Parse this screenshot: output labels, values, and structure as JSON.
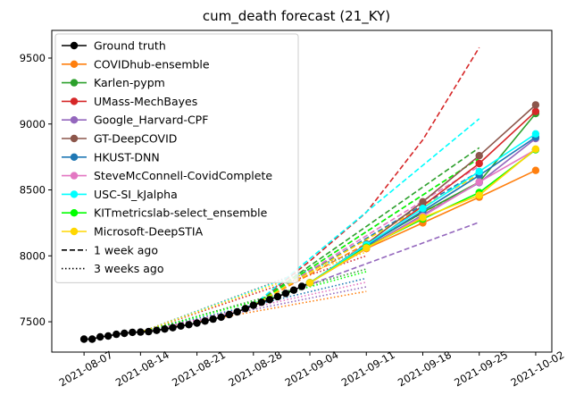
{
  "chart_data": {
    "type": "line",
    "title": "cum_death forecast (21_KY)",
    "xlabel": "",
    "ylabel": "",
    "x_type": "date",
    "xlim": [
      "2021-08-03",
      "2021-10-04"
    ],
    "ylim": [
      7270,
      9710
    ],
    "x_ticks": [
      "2021-08-07",
      "2021-08-14",
      "2021-08-21",
      "2021-08-28",
      "2021-09-04",
      "2021-09-11",
      "2021-09-18",
      "2021-09-25",
      "2021-10-02"
    ],
    "y_ticks": [
      7500,
      8000,
      8500,
      9000,
      9500
    ],
    "grid": false,
    "legend_position": "top-left",
    "legend": [
      {
        "label": "Ground truth",
        "color": "#000000",
        "kind": "marker"
      },
      {
        "label": "COVIDhub-ensemble",
        "color": "#ff7f0e",
        "kind": "marker"
      },
      {
        "label": "Karlen-pypm",
        "color": "#2ca02c",
        "kind": "marker"
      },
      {
        "label": "UMass-MechBayes",
        "color": "#d62728",
        "kind": "marker"
      },
      {
        "label": "Google_Harvard-CPF",
        "color": "#9467bd",
        "kind": "marker"
      },
      {
        "label": "GT-DeepCOVID",
        "color": "#8c564b",
        "kind": "marker"
      },
      {
        "label": "HKUST-DNN",
        "color": "#1f77b4",
        "kind": "marker"
      },
      {
        "label": "SteveMcConnell-CovidComplete",
        "color": "#e377c2",
        "kind": "marker"
      },
      {
        "label": "USC-SI_kJalpha",
        "color": "#00ffff",
        "kind": "marker"
      },
      {
        "label": "KITmetricslab-select_ensemble",
        "color": "#00ff00",
        "kind": "marker"
      },
      {
        "label": "Microsoft-DeepSTIA",
        "color": "#ffd700",
        "kind": "marker"
      },
      {
        "label": "1 week ago",
        "color": "#000000",
        "kind": "dashed"
      },
      {
        "label": "3 weeks ago",
        "color": "#000000",
        "kind": "dotted"
      }
    ],
    "ground_truth": {
      "name": "Ground truth",
      "color": "#000000",
      "points": [
        [
          "2021-08-07",
          7368
        ],
        [
          "2021-08-08",
          7368
        ],
        [
          "2021-08-09",
          7385
        ],
        [
          "2021-08-10",
          7392
        ],
        [
          "2021-08-11",
          7405
        ],
        [
          "2021-08-12",
          7412
        ],
        [
          "2021-08-13",
          7420
        ],
        [
          "2021-08-14",
          7422
        ],
        [
          "2021-08-15",
          7425
        ],
        [
          "2021-08-16",
          7435
        ],
        [
          "2021-08-17",
          7445
        ],
        [
          "2021-08-18",
          7455
        ],
        [
          "2021-08-19",
          7468
        ],
        [
          "2021-08-20",
          7478
        ],
        [
          "2021-08-21",
          7490
        ],
        [
          "2021-08-22",
          7505
        ],
        [
          "2021-08-23",
          7520
        ],
        [
          "2021-08-24",
          7535
        ],
        [
          "2021-08-25",
          7555
        ],
        [
          "2021-08-26",
          7575
        ],
        [
          "2021-08-27",
          7600
        ],
        [
          "2021-08-28",
          7625
        ],
        [
          "2021-08-29",
          7648
        ],
        [
          "2021-08-30",
          7668
        ],
        [
          "2021-08-31",
          7690
        ],
        [
          "2021-09-01",
          7715
        ],
        [
          "2021-09-02",
          7740
        ],
        [
          "2021-09-03",
          7768
        ],
        [
          "2021-09-04",
          7795
        ]
      ]
    },
    "forecast_dates": [
      "2021-09-04",
      "2021-09-11",
      "2021-09-18",
      "2021-09-25",
      "2021-10-02"
    ],
    "forecasts": [
      {
        "name": "COVIDhub-ensemble",
        "color": "#ff7f0e",
        "values": [
          7795,
          8055,
          8250,
          8445,
          8648
        ]
      },
      {
        "name": "Karlen-pypm",
        "color": "#2ca02c",
        "values": [
          7795,
          8080,
          8330,
          8560,
          9080
        ]
      },
      {
        "name": "UMass-MechBayes",
        "color": "#d62728",
        "values": [
          7795,
          8070,
          8380,
          8700,
          9095
        ]
      },
      {
        "name": "Google_Harvard-CPF",
        "color": "#9467bd",
        "values": [
          7795,
          8065,
          8310,
          8555,
          8890
        ]
      },
      {
        "name": "GT-DeepCOVID",
        "color": "#8c564b",
        "values": [
          7795,
          8090,
          8410,
          8760,
          9145
        ]
      },
      {
        "name": "HKUST-DNN",
        "color": "#1f77b4",
        "values": [
          7795,
          8075,
          8340,
          8610,
          8900
        ]
      },
      {
        "name": "SteveMcConnell-CovidComplete",
        "color": "#e377c2",
        "values": [
          7795,
          8060,
          8300,
          8560,
          8805
        ]
      },
      {
        "name": "USC-SI_kJalpha",
        "color": "#00ffff",
        "values": [
          7795,
          8085,
          8360,
          8640,
          8925
        ]
      },
      {
        "name": "KITmetricslab-select_ensemble",
        "color": "#00ff00",
        "values": [
          7795,
          8065,
          8280,
          8480,
          8805
        ]
      },
      {
        "name": "Microsoft-DeepSTIA",
        "color": "#ffd700",
        "values": [
          7795,
          8060,
          8290,
          8460,
          8810
        ]
      }
    ],
    "one_week_ago": [
      {
        "name": "COVIDhub-ensemble",
        "color": "#ff7f0e",
        "dates": [
          "2021-08-28",
          "2021-09-25"
        ],
        "values": [
          7625,
          8560
        ]
      },
      {
        "name": "Karlen-pypm",
        "color": "#2ca02c",
        "dates": [
          "2021-08-28",
          "2021-09-25"
        ],
        "values": [
          7625,
          8820
        ]
      },
      {
        "name": "UMass-MechBayes",
        "color": "#d62728",
        "dates": [
          "2021-08-28",
          "2021-09-04",
          "2021-09-11",
          "2021-09-18",
          "2021-09-25"
        ],
        "values": [
          7625,
          7960,
          8330,
          8880,
          9580
        ]
      },
      {
        "name": "Google_Harvard-CPF",
        "color": "#9467bd",
        "dates": [
          "2021-08-28",
          "2021-09-25"
        ],
        "values": [
          7625,
          8255
        ]
      },
      {
        "name": "GT-DeepCOVID",
        "color": "#8c564b",
        "dates": [
          "2021-08-28",
          "2021-09-25"
        ],
        "values": [
          7625,
          8740
        ]
      },
      {
        "name": "HKUST-DNN",
        "color": "#1f77b4",
        "dates": [
          "2021-08-28",
          "2021-09-25"
        ],
        "values": [
          7625,
          8640
        ]
      },
      {
        "name": "SteveMcConnell-CovidComplete",
        "color": "#e377c2",
        "dates": [
          "2021-08-28",
          "2021-09-25"
        ],
        "values": [
          7625,
          8680
        ]
      },
      {
        "name": "USC-SI_kJalpha",
        "color": "#00ffff",
        "dates": [
          "2021-08-28",
          "2021-09-25"
        ],
        "values": [
          7625,
          9040
        ]
      },
      {
        "name": "KITmetricslab-select_ensemble",
        "color": "#00ff00",
        "dates": [
          "2021-08-28",
          "2021-09-25"
        ],
        "values": [
          7625,
          8740
        ]
      },
      {
        "name": "Microsoft-DeepSTIA",
        "color": "#ffd700",
        "dates": [
          "2021-08-28",
          "2021-09-25"
        ],
        "values": [
          7625,
          8620
        ]
      }
    ],
    "three_weeks_ago": [
      {
        "name": "COVIDhub-ensemble",
        "color": "#ff7f0e",
        "dates": [
          "2021-08-14",
          "2021-09-11"
        ],
        "values": [
          7422,
          7730
        ]
      },
      {
        "name": "Karlen-pypm",
        "color": "#2ca02c",
        "dates": [
          "2021-08-14",
          "2021-09-11"
        ],
        "values": [
          7422,
          7900
        ]
      },
      {
        "name": "UMass-MechBayes",
        "color": "#d62728",
        "dates": [
          "2021-08-14",
          "2021-09-11"
        ],
        "values": [
          7422,
          8000
        ]
      },
      {
        "name": "Google_Harvard-CPF",
        "color": "#9467bd",
        "dates": [
          "2021-08-14",
          "2021-09-11"
        ],
        "values": [
          7422,
          7765
        ]
      },
      {
        "name": "GT-DeepCOVID",
        "color": "#8c564b",
        "dates": [
          "2021-08-14",
          "2021-09-11"
        ],
        "values": [
          7422,
          8060
        ]
      },
      {
        "name": "HKUST-DNN",
        "color": "#1f77b4",
        "dates": [
          "2021-08-14",
          "2021-09-11"
        ],
        "values": [
          7422,
          7830
        ]
      },
      {
        "name": "SteveMcConnell-CovidComplete",
        "color": "#e377c2",
        "dates": [
          "2021-08-14",
          "2021-09-11"
        ],
        "values": [
          7422,
          7800
        ]
      },
      {
        "name": "USC-SI_kJalpha",
        "color": "#00ffff",
        "dates": [
          "2021-08-14",
          "2021-09-11"
        ],
        "values": [
          7422,
          8050
        ]
      },
      {
        "name": "KITmetricslab-select_ensemble",
        "color": "#00ff00",
        "dates": [
          "2021-08-14",
          "2021-09-11"
        ],
        "values": [
          7422,
          7880
        ]
      },
      {
        "name": "Microsoft-DeepSTIA",
        "color": "#ffd700",
        "dates": [
          "2021-08-14",
          "2021-09-11"
        ],
        "values": [
          7422,
          8030
        ]
      }
    ]
  }
}
